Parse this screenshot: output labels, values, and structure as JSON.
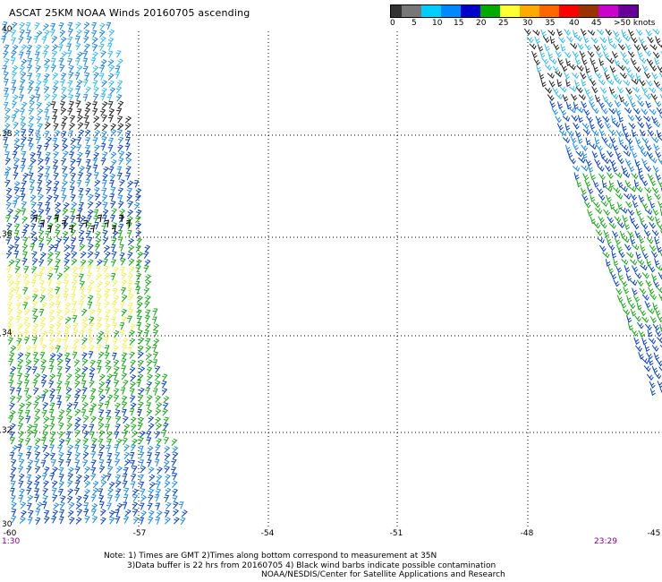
{
  "title": "ASCAT 25KM NOAA Winds 20160705 ascending",
  "legend": {
    "labels": [
      "0",
      "5",
      "10",
      "15",
      "20",
      "25",
      "30",
      "35",
      "40",
      "45",
      ">50 knots"
    ],
    "colors": [
      "#333333",
      "#777777",
      "#00ccff",
      "#0088ff",
      "#0000cc",
      "#00aa00",
      "#ffff33",
      "#ffaa00",
      "#ff6600",
      "#ff0000",
      "#993300",
      "#cc00cc",
      "#660099"
    ]
  },
  "map": {
    "lat_labels": [
      "40",
      "38",
      "36",
      "34",
      "32",
      "30"
    ],
    "lon_labels": [
      "-60",
      "-57",
      "-54",
      "-51",
      "-48",
      "-45"
    ],
    "time_left": "1:30",
    "time_right": "23:29"
  },
  "notes": {
    "line1": "Note: 1) Times are GMT 2)Times along bottom correspond to measurement at 35N",
    "line2": "3)Data buffer is 22 hrs from 20160705 4) Black wind barbs indicate possible contamination",
    "line3": "NOAA/NESDIS/Center for Satellite Applications and Research"
  }
}
